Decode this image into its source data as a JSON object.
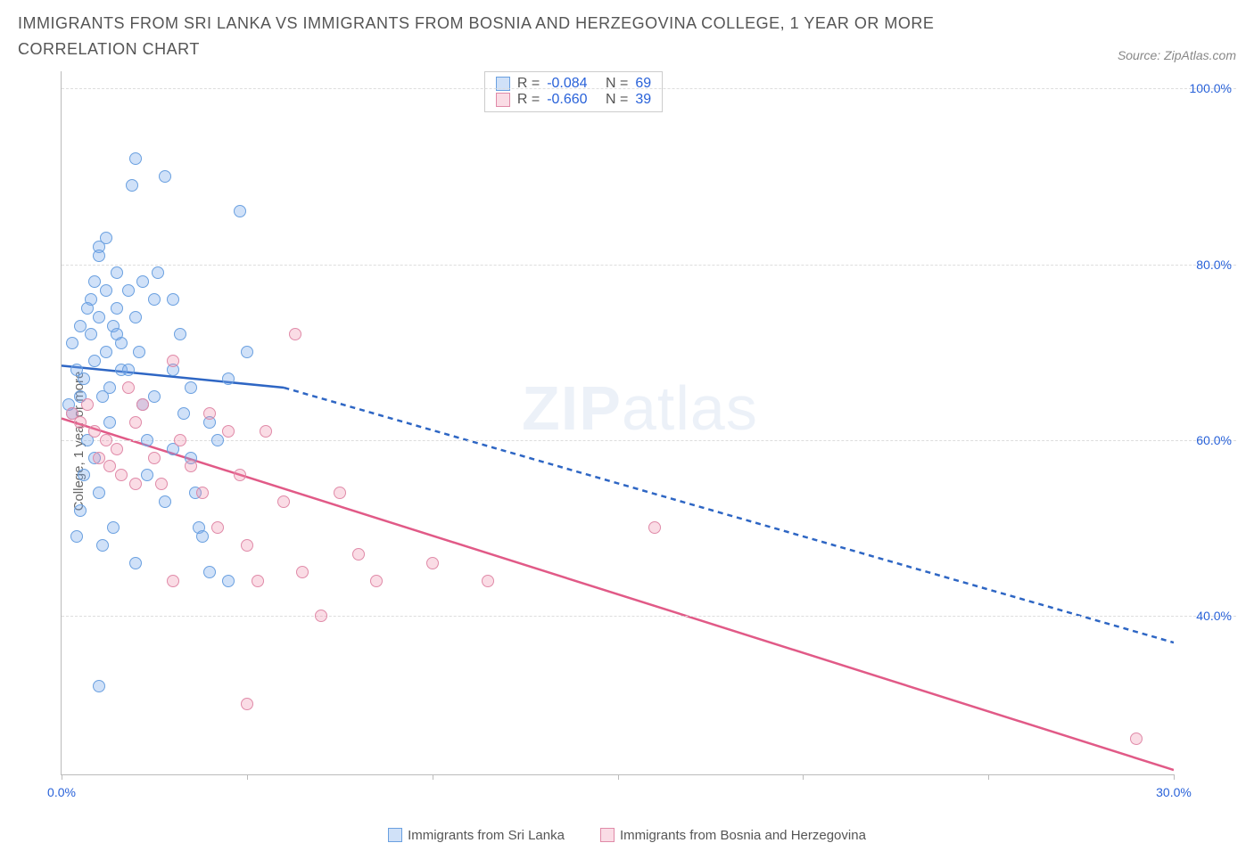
{
  "title": "IMMIGRANTS FROM SRI LANKA VS IMMIGRANTS FROM BOSNIA AND HERZEGOVINA COLLEGE, 1 YEAR OR MORE CORRELATION CHART",
  "source_label": "Source: ZipAtlas.com",
  "ylabel": "College, 1 year or more",
  "watermark_a": "ZIP",
  "watermark_b": "atlas",
  "chart": {
    "type": "scatter",
    "background_color": "#ffffff",
    "grid_color": "#dddddd",
    "axis_color": "#bbbbbb",
    "x_min": 0,
    "x_max": 30,
    "y_min": 22,
    "y_max": 102,
    "y_ticks": [
      40,
      60,
      80,
      100
    ],
    "y_tick_labels": [
      "40.0%",
      "60.0%",
      "80.0%",
      "100.0%"
    ],
    "y_tick_color": "#2962d9",
    "x_ticks": [
      0,
      5,
      10,
      15,
      20,
      25,
      30
    ],
    "x_tick_labels": [
      "0.0%",
      "",
      "",
      "",
      "",
      "",
      "30.0%"
    ],
    "x_tick_color": "#2962d9",
    "marker_radius": 7,
    "marker_stroke_width": 1.2,
    "series": [
      {
        "name": "Immigrants from Sri Lanka",
        "fill": "rgba(120,170,235,0.35)",
        "stroke": "#6aa0e0",
        "line_color": "#2e66c4",
        "line_solid_x1": 0,
        "line_solid_y1": 68.5,
        "line_solid_x2": 6,
        "line_solid_y2": 66.0,
        "line_dash_x2": 30,
        "line_dash_y2": 37.0,
        "R": "-0.084",
        "N": "69",
        "points": [
          [
            0.3,
            63
          ],
          [
            0.5,
            65
          ],
          [
            0.6,
            67
          ],
          [
            0.8,
            72
          ],
          [
            0.8,
            76
          ],
          [
            0.9,
            78
          ],
          [
            1.0,
            82
          ],
          [
            1.0,
            74
          ],
          [
            1.2,
            77
          ],
          [
            1.2,
            70
          ],
          [
            1.3,
            66
          ],
          [
            1.4,
            73
          ],
          [
            1.5,
            79
          ],
          [
            1.5,
            75
          ],
          [
            1.6,
            71
          ],
          [
            1.6,
            68
          ],
          [
            1.8,
            77
          ],
          [
            1.9,
            89
          ],
          [
            2.0,
            92
          ],
          [
            2.0,
            74
          ],
          [
            2.1,
            70
          ],
          [
            2.2,
            64
          ],
          [
            2.3,
            56
          ],
          [
            2.3,
            60
          ],
          [
            2.5,
            76
          ],
          [
            2.6,
            79
          ],
          [
            2.8,
            90
          ],
          [
            3.0,
            76
          ],
          [
            3.0,
            68
          ],
          [
            3.2,
            72
          ],
          [
            3.3,
            63
          ],
          [
            3.5,
            58
          ],
          [
            3.6,
            54
          ],
          [
            3.7,
            50
          ],
          [
            3.8,
            49
          ],
          [
            4.0,
            62
          ],
          [
            4.0,
            45
          ],
          [
            4.2,
            60
          ],
          [
            4.5,
            67
          ],
          [
            4.8,
            86
          ],
          [
            5.0,
            70
          ],
          [
            1.0,
            32
          ],
          [
            2.0,
            46
          ],
          [
            1.4,
            50
          ],
          [
            1.1,
            48
          ],
          [
            1.0,
            54
          ],
          [
            0.9,
            58
          ],
          [
            0.7,
            60
          ],
          [
            0.6,
            56
          ],
          [
            0.5,
            52
          ],
          [
            0.4,
            49
          ],
          [
            4.5,
            44
          ],
          [
            2.8,
            53
          ],
          [
            3.5,
            66
          ],
          [
            0.2,
            64
          ],
          [
            0.4,
            68
          ],
          [
            0.3,
            71
          ],
          [
            0.5,
            73
          ],
          [
            0.7,
            75
          ],
          [
            0.9,
            69
          ],
          [
            1.1,
            65
          ],
          [
            1.3,
            62
          ],
          [
            1.0,
            81
          ],
          [
            1.2,
            83
          ],
          [
            1.5,
            72
          ],
          [
            1.8,
            68
          ],
          [
            2.2,
            78
          ],
          [
            2.5,
            65
          ],
          [
            3.0,
            59
          ]
        ]
      },
      {
        "name": "Immigrants from Bosnia and Herzegovina",
        "fill": "rgba(240,140,170,0.30)",
        "stroke": "#e08aa8",
        "line_color": "#e15a87",
        "line_solid_x1": 0,
        "line_solid_y1": 62.5,
        "line_solid_x2": 30,
        "line_solid_y2": 22.5,
        "R": "-0.660",
        "N": "39",
        "points": [
          [
            0.3,
            63
          ],
          [
            0.5,
            62
          ],
          [
            0.7,
            64
          ],
          [
            0.9,
            61
          ],
          [
            1.0,
            58
          ],
          [
            1.2,
            60
          ],
          [
            1.3,
            57
          ],
          [
            1.5,
            59
          ],
          [
            1.6,
            56
          ],
          [
            1.8,
            66
          ],
          [
            2.0,
            62
          ],
          [
            2.0,
            55
          ],
          [
            2.2,
            64
          ],
          [
            2.5,
            58
          ],
          [
            2.7,
            55
          ],
          [
            3.0,
            69
          ],
          [
            3.2,
            60
          ],
          [
            3.5,
            57
          ],
          [
            3.8,
            54
          ],
          [
            4.0,
            63
          ],
          [
            4.2,
            50
          ],
          [
            4.5,
            61
          ],
          [
            4.8,
            56
          ],
          [
            5.0,
            48
          ],
          [
            5.3,
            44
          ],
          [
            5.5,
            61
          ],
          [
            6.0,
            53
          ],
          [
            6.3,
            72
          ],
          [
            6.5,
            45
          ],
          [
            7.0,
            40
          ],
          [
            7.5,
            54
          ],
          [
            8.0,
            47
          ],
          [
            8.5,
            44
          ],
          [
            5.0,
            30
          ],
          [
            3.0,
            44
          ],
          [
            10.0,
            46
          ],
          [
            11.5,
            44
          ],
          [
            16.0,
            50
          ],
          [
            29.0,
            26
          ]
        ]
      }
    ]
  },
  "stats_box": {
    "R_label": "R =",
    "N_label": "N ="
  },
  "legend": {
    "item1": "Immigrants from Sri Lanka",
    "item2": "Immigrants from Bosnia and Herzegovina"
  }
}
